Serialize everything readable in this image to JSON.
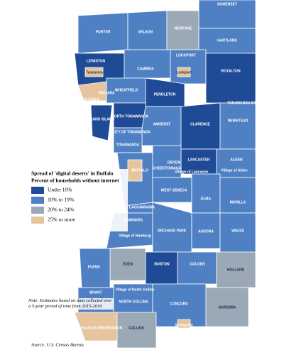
{
  "title": "Spread of 'digital deserts' in Buffalo",
  "subtitle": "Percent of households without internet",
  "legend": [
    {
      "label": "Under 10%",
      "color": "#1f4a96"
    },
    {
      "label": "10% to 19%",
      "color": "#4f80c4"
    },
    {
      "label": "20% to 24%",
      "color": "#9ba8b6"
    },
    {
      "label": "25% or more",
      "color": "#e5c49e"
    }
  ],
  "places": [
    "SOMERSET",
    "PORTER",
    "WILSON",
    "NEWFANE",
    "HARTLAND",
    "LEWISTON",
    "Tuscarora",
    "CAMBRIA",
    "LOCKPORT",
    "Lockport",
    "ROYALTON",
    "TONAWANDA INDIAN RES.",
    "NIAGARA FALLS",
    "NIAGARA",
    "WHEATFIELD",
    "PENDLETON",
    "GRAND ISLAND",
    "NORTH TONAWANDA",
    "CITY OF TONAWANDA",
    "AMHERST",
    "CLARENCE",
    "NEWSTEAD",
    "TONAWANDA",
    "LANCASTER",
    "ALDEN",
    "Village of Alden",
    "BUFFALO",
    "CHEEKTOWAGA",
    "DEPEW",
    "Village of Lancaster",
    "WEST SENECA",
    "ELMA",
    "MARILLA",
    "LACKAWANNA",
    "HAMBURG",
    "Village of Hamburg",
    "ORCHARD PARK",
    "AURORA",
    "WALES",
    "EDEN",
    "EVANS",
    "BOSTON",
    "COLDEN",
    "HOLLAND",
    "BRANT",
    "Village of North Collins",
    "NORTH COLLINS",
    "CONCORD",
    "SARDINIA",
    "CATTARAUGUS RESERVATION",
    "COLLINS",
    "Springville"
  ],
  "note": "Note: Estimates based on data collected over a 5-year period of time from 2015-2019",
  "source": "Source: U.S. Census Bureau"
}
